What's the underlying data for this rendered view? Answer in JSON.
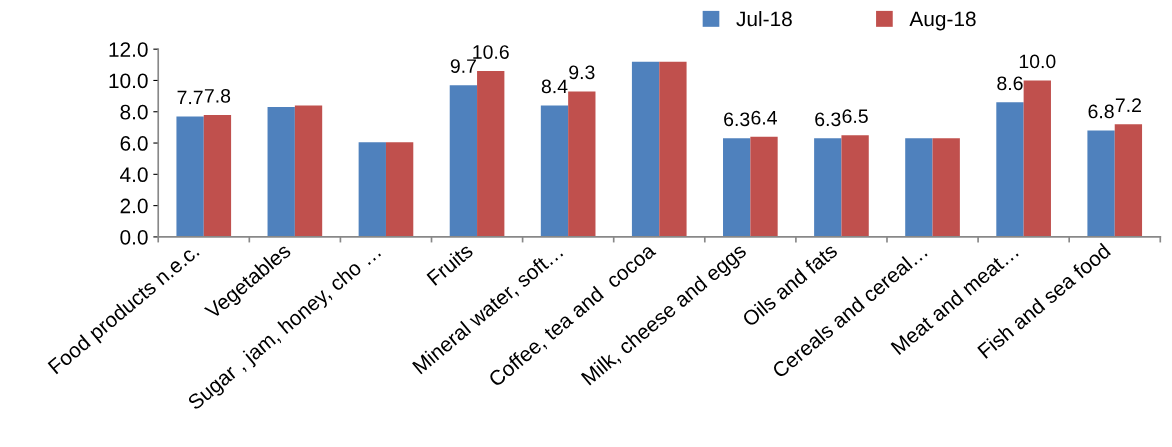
{
  "chart_data": {
    "type": "bar",
    "categories": [
      "Food products n.e.c.",
      "Vegetables",
      "Sugar , jam, honey, cho …",
      "Fruits",
      "Mineral water, soft…",
      "Coffee, tea and  cocoa",
      "Milk, cheese and eggs",
      "Oils and fats",
      "Cereals and cereal…",
      "Meat and meat…",
      "Fish and sea food"
    ],
    "series": [
      {
        "name": "Jul-18",
        "color": "#4f81bd",
        "values": [
          7.7,
          8.3,
          6.05,
          9.7,
          8.4,
          11.2,
          6.3,
          6.3,
          6.3,
          8.6,
          6.8
        ],
        "value_labels": [
          "7.7",
          null,
          null,
          "9.7",
          "8.4",
          null,
          "6.3",
          "6.3",
          null,
          "8.6",
          "6.8"
        ]
      },
      {
        "name": "Aug-18",
        "color": "#c0504d",
        "values": [
          7.8,
          8.4,
          6.05,
          10.6,
          9.3,
          11.2,
          6.4,
          6.5,
          6.3,
          10.0,
          7.2
        ],
        "value_labels": [
          "7.8",
          null,
          null,
          "10.6",
          "9.3",
          null,
          "6.4",
          "6.5",
          null,
          "10.0",
          "7.2"
        ]
      }
    ],
    "ylim": [
      0,
      12
    ],
    "yticks": [
      {
        "value": 0,
        "label": "0.0"
      },
      {
        "value": 2,
        "label": "2.0"
      },
      {
        "value": 4,
        "label": "4.0"
      },
      {
        "value": 6,
        "label": "6.0"
      },
      {
        "value": 8,
        "label": "8.0"
      },
      {
        "value": 10,
        "label": "10.0"
      },
      {
        "value": 12,
        "label": "12.0"
      }
    ],
    "grid": false,
    "legend": "top"
  }
}
